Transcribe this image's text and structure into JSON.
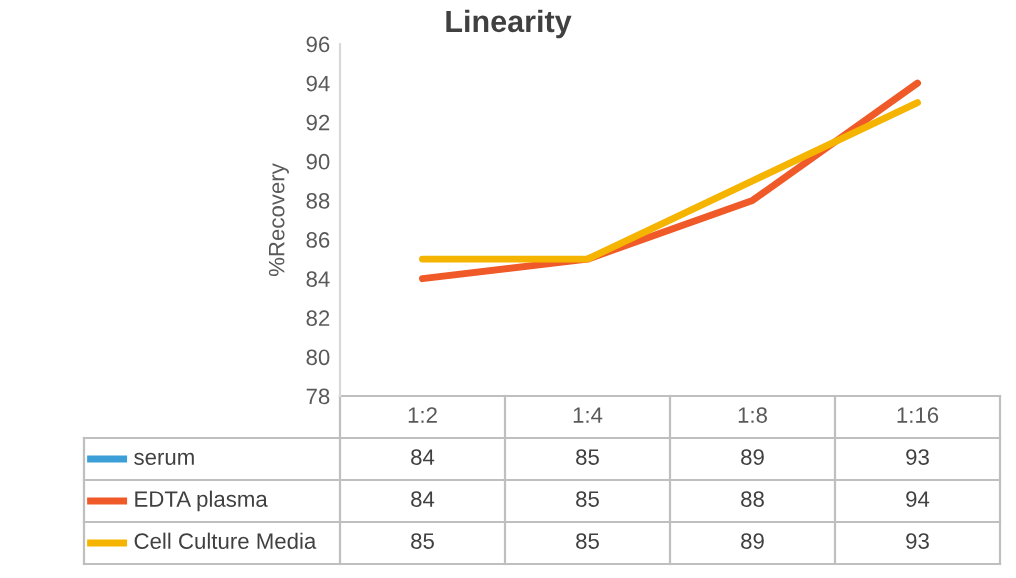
{
  "chart_data": {
    "type": "line",
    "title": "Linearity",
    "ylabel": "%Recovery",
    "categories": [
      "1:2",
      "1:4",
      "1:8",
      "1:16"
    ],
    "series": [
      {
        "name": "serum",
        "color": "#3c9fd8",
        "values": [
          null,
          null,
          null,
          null
        ],
        "value_labels": [
          "84",
          "85",
          "89",
          "93"
        ]
      },
      {
        "name": "EDTA plasma",
        "color": "#ef5a28",
        "values": [
          84,
          85,
          88,
          94
        ]
      },
      {
        "name": "Cell Culture Media",
        "color": "#f5b400",
        "values": [
          85,
          85,
          89,
          93
        ]
      }
    ],
    "ylim": [
      78,
      96
    ],
    "yticks": [
      78,
      80,
      82,
      84,
      86,
      88,
      90,
      92,
      94,
      96
    ],
    "grid": false,
    "legend": "bottom",
    "data_labels": true,
    "marker": "none",
    "line_style": "solid"
  }
}
